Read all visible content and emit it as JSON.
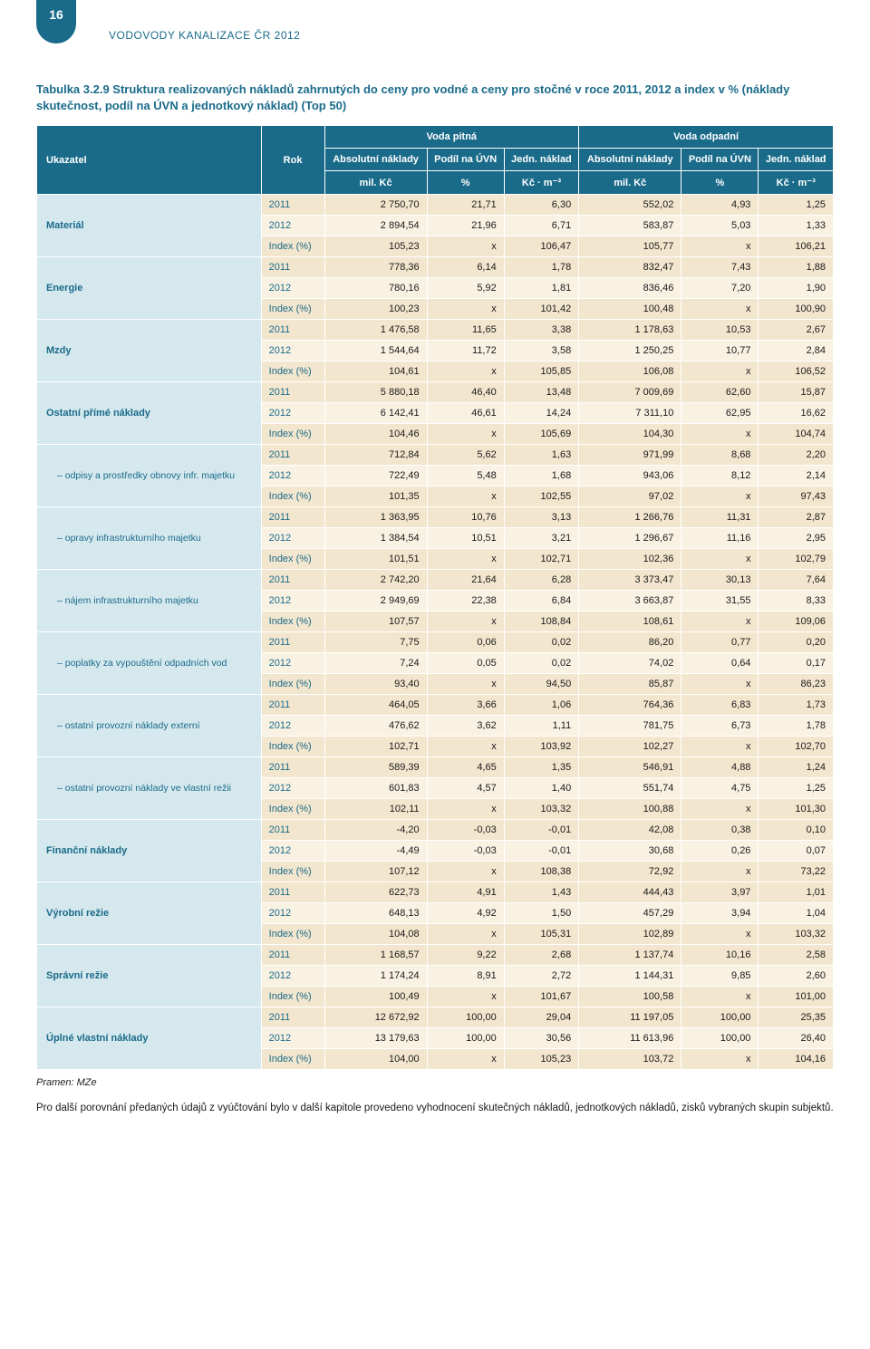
{
  "page_number": "16",
  "header": "VODOVODY KANALIZACE ČR 2012",
  "table_title": "Tabulka 3.2.9 Struktura realizovaných nákladů zahrnutých do ceny pro vodné a ceny pro stočné v roce 2011, 2012 a index v % (náklady skutečnost, podíl na ÚVN a jednotkový náklad) (Top 50)",
  "columns": {
    "ukazatel": "Ukazatel",
    "rok": "Rok",
    "voda_pitna": "Voda pitná",
    "voda_odpadni": "Voda odpadní",
    "abs_naklady": "Absolutní náklady",
    "podil_uvn": "Podíl na ÚVN",
    "jedn_naklad": "Jedn. náklad",
    "unit_milkc": "mil. Kč",
    "unit_pct": "%",
    "unit_kcm3": "Kč · m⁻³"
  },
  "rows": [
    {
      "label": "Materiál",
      "sub": false,
      "data": [
        {
          "rok": "2011",
          "a": "2 750,70",
          "b": "21,71",
          "c": "6,30",
          "d": "552,02",
          "e": "4,93",
          "f": "1,25"
        },
        {
          "rok": "2012",
          "a": "2 894,54",
          "b": "21,96",
          "c": "6,71",
          "d": "583,87",
          "e": "5,03",
          "f": "1,33"
        },
        {
          "rok": "Index (%)",
          "a": "105,23",
          "b": "x",
          "c": "106,47",
          "d": "105,77",
          "e": "x",
          "f": "106,21"
        }
      ]
    },
    {
      "label": "Energie",
      "sub": false,
      "data": [
        {
          "rok": "2011",
          "a": "778,36",
          "b": "6,14",
          "c": "1,78",
          "d": "832,47",
          "e": "7,43",
          "f": "1,88"
        },
        {
          "rok": "2012",
          "a": "780,16",
          "b": "5,92",
          "c": "1,81",
          "d": "836,46",
          "e": "7,20",
          "f": "1,90"
        },
        {
          "rok": "Index (%)",
          "a": "100,23",
          "b": "x",
          "c": "101,42",
          "d": "100,48",
          "e": "x",
          "f": "100,90"
        }
      ]
    },
    {
      "label": "Mzdy",
      "sub": false,
      "data": [
        {
          "rok": "2011",
          "a": "1 476,58",
          "b": "11,65",
          "c": "3,38",
          "d": "1 178,63",
          "e": "10,53",
          "f": "2,67"
        },
        {
          "rok": "2012",
          "a": "1 544,64",
          "b": "11,72",
          "c": "3,58",
          "d": "1 250,25",
          "e": "10,77",
          "f": "2,84"
        },
        {
          "rok": "Index (%)",
          "a": "104,61",
          "b": "x",
          "c": "105,85",
          "d": "106,08",
          "e": "x",
          "f": "106,52"
        }
      ]
    },
    {
      "label": "Ostatní přímé náklady",
      "sub": false,
      "data": [
        {
          "rok": "2011",
          "a": "5 880,18",
          "b": "46,40",
          "c": "13,48",
          "d": "7 009,69",
          "e": "62,60",
          "f": "15,87"
        },
        {
          "rok": "2012",
          "a": "6 142,41",
          "b": "46,61",
          "c": "14,24",
          "d": "7 311,10",
          "e": "62,95",
          "f": "16,62"
        },
        {
          "rok": "Index (%)",
          "a": "104,46",
          "b": "x",
          "c": "105,69",
          "d": "104,30",
          "e": "x",
          "f": "104,74"
        }
      ]
    },
    {
      "label": "– odpisy a prostředky obnovy infr. majetku",
      "sub": true,
      "data": [
        {
          "rok": "2011",
          "a": "712,84",
          "b": "5,62",
          "c": "1,63",
          "d": "971,99",
          "e": "8,68",
          "f": "2,20"
        },
        {
          "rok": "2012",
          "a": "722,49",
          "b": "5,48",
          "c": "1,68",
          "d": "943,06",
          "e": "8,12",
          "f": "2,14"
        },
        {
          "rok": "Index (%)",
          "a": "101,35",
          "b": "x",
          "c": "102,55",
          "d": "97,02",
          "e": "x",
          "f": "97,43"
        }
      ]
    },
    {
      "label": "– opravy infrastrukturního majetku",
      "sub": true,
      "data": [
        {
          "rok": "2011",
          "a": "1 363,95",
          "b": "10,76",
          "c": "3,13",
          "d": "1 266,76",
          "e": "11,31",
          "f": "2,87"
        },
        {
          "rok": "2012",
          "a": "1 384,54",
          "b": "10,51",
          "c": "3,21",
          "d": "1 296,67",
          "e": "11,16",
          "f": "2,95"
        },
        {
          "rok": "Index (%)",
          "a": "101,51",
          "b": "x",
          "c": "102,71",
          "d": "102,36",
          "e": "x",
          "f": "102,79"
        }
      ]
    },
    {
      "label": "– nájem infrastrukturního majetku",
      "sub": true,
      "data": [
        {
          "rok": "2011",
          "a": "2 742,20",
          "b": "21,64",
          "c": "6,28",
          "d": "3 373,47",
          "e": "30,13",
          "f": "7,64"
        },
        {
          "rok": "2012",
          "a": "2 949,69",
          "b": "22,38",
          "c": "6,84",
          "d": "3 663,87",
          "e": "31,55",
          "f": "8,33"
        },
        {
          "rok": "Index (%)",
          "a": "107,57",
          "b": "x",
          "c": "108,84",
          "d": "108,61",
          "e": "x",
          "f": "109,06"
        }
      ]
    },
    {
      "label": "– poplatky za vypouštění odpadních vod",
      "sub": true,
      "data": [
        {
          "rok": "2011",
          "a": "7,75",
          "b": "0,06",
          "c": "0,02",
          "d": "86,20",
          "e": "0,77",
          "f": "0,20"
        },
        {
          "rok": "2012",
          "a": "7,24",
          "b": "0,05",
          "c": "0,02",
          "d": "74,02",
          "e": "0,64",
          "f": "0,17"
        },
        {
          "rok": "Index (%)",
          "a": "93,40",
          "b": "x",
          "c": "94,50",
          "d": "85,87",
          "e": "x",
          "f": "86,23"
        }
      ]
    },
    {
      "label": "– ostatní provozní náklady externí",
      "sub": true,
      "data": [
        {
          "rok": "2011",
          "a": "464,05",
          "b": "3,66",
          "c": "1,06",
          "d": "764,36",
          "e": "6,83",
          "f": "1,73"
        },
        {
          "rok": "2012",
          "a": "476,62",
          "b": "3,62",
          "c": "1,11",
          "d": "781,75",
          "e": "6,73",
          "f": "1,78"
        },
        {
          "rok": "Index (%)",
          "a": "102,71",
          "b": "x",
          "c": "103,92",
          "d": "102,27",
          "e": "x",
          "f": "102,70"
        }
      ]
    },
    {
      "label": "– ostatní provozní náklady ve vlastní režii",
      "sub": true,
      "data": [
        {
          "rok": "2011",
          "a": "589,39",
          "b": "4,65",
          "c": "1,35",
          "d": "546,91",
          "e": "4,88",
          "f": "1,24"
        },
        {
          "rok": "2012",
          "a": "601,83",
          "b": "4,57",
          "c": "1,40",
          "d": "551,74",
          "e": "4,75",
          "f": "1,25"
        },
        {
          "rok": "Index (%)",
          "a": "102,11",
          "b": "x",
          "c": "103,32",
          "d": "100,88",
          "e": "x",
          "f": "101,30"
        }
      ]
    },
    {
      "label": "Finanční náklady",
      "sub": false,
      "data": [
        {
          "rok": "2011",
          "a": "-4,20",
          "b": "-0,03",
          "c": "-0,01",
          "d": "42,08",
          "e": "0,38",
          "f": "0,10"
        },
        {
          "rok": "2012",
          "a": "-4,49",
          "b": "-0,03",
          "c": "-0,01",
          "d": "30,68",
          "e": "0,26",
          "f": "0,07"
        },
        {
          "rok": "Index (%)",
          "a": "107,12",
          "b": "x",
          "c": "108,38",
          "d": "72,92",
          "e": "x",
          "f": "73,22"
        }
      ]
    },
    {
      "label": "Výrobní režie",
      "sub": false,
      "data": [
        {
          "rok": "2011",
          "a": "622,73",
          "b": "4,91",
          "c": "1,43",
          "d": "444,43",
          "e": "3,97",
          "f": "1,01"
        },
        {
          "rok": "2012",
          "a": "648,13",
          "b": "4,92",
          "c": "1,50",
          "d": "457,29",
          "e": "3,94",
          "f": "1,04"
        },
        {
          "rok": "Index (%)",
          "a": "104,08",
          "b": "x",
          "c": "105,31",
          "d": "102,89",
          "e": "x",
          "f": "103,32"
        }
      ]
    },
    {
      "label": "Správní režie",
      "sub": false,
      "data": [
        {
          "rok": "2011",
          "a": "1 168,57",
          "b": "9,22",
          "c": "2,68",
          "d": "1 137,74",
          "e": "10,16",
          "f": "2,58"
        },
        {
          "rok": "2012",
          "a": "1 174,24",
          "b": "8,91",
          "c": "2,72",
          "d": "1 144,31",
          "e": "9,85",
          "f": "2,60"
        },
        {
          "rok": "Index (%)",
          "a": "100,49",
          "b": "x",
          "c": "101,67",
          "d": "100,58",
          "e": "x",
          "f": "101,00"
        }
      ]
    },
    {
      "label": "Úplné vlastní náklady",
      "sub": false,
      "data": [
        {
          "rok": "2011",
          "a": "12 672,92",
          "b": "100,00",
          "c": "29,04",
          "d": "11 197,05",
          "e": "100,00",
          "f": "25,35"
        },
        {
          "rok": "2012",
          "a": "13 179,63",
          "b": "100,00",
          "c": "30,56",
          "d": "11 613,96",
          "e": "100,00",
          "f": "26,40"
        },
        {
          "rok": "Index (%)",
          "a": "104,00",
          "b": "x",
          "c": "105,23",
          "d": "103,72",
          "e": "x",
          "f": "104,16"
        }
      ]
    }
  ],
  "source": "Pramen: MZe",
  "footer_paragraph": "Pro další porovnání předaných údajů z vyúčtování bylo v další kapitole provedeno vyhodnocení skutečných nákladů, jednotkových nákladů, zisků vybraných skupin subjektů.",
  "style": {
    "header_bg": "#1a6b8a",
    "header_text": "#ffffff",
    "label_bg": "#d5e8ee",
    "label_text": "#1a6b8a",
    "row_dark": "#f3e6ce",
    "row_light": "#f9f2e3",
    "font_size_body": 11,
    "font_size_title": 13
  }
}
